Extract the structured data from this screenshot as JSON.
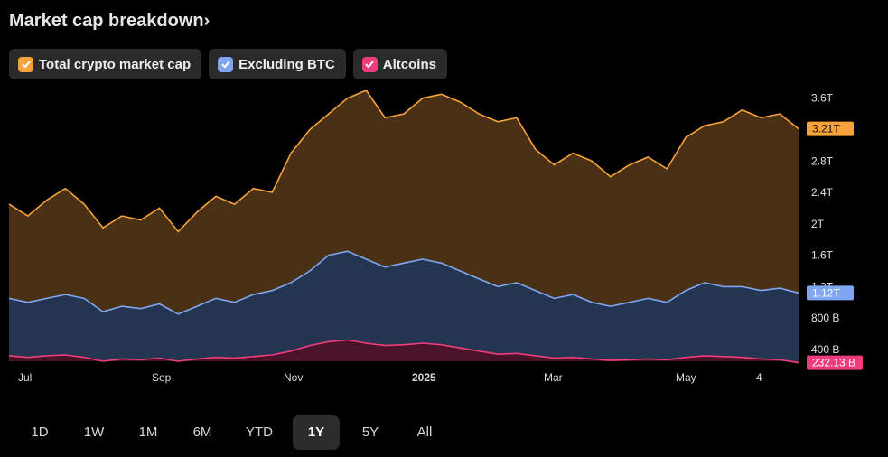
{
  "header": {
    "title": "Market cap breakdown",
    "chevron": "›"
  },
  "legend": [
    {
      "label": "Total crypto market cap",
      "color": "#f7a23b",
      "icon": "check-icon"
    },
    {
      "label": "Excluding BTC",
      "color": "#7fa6f0",
      "icon": "check-icon"
    },
    {
      "label": "Altcoins",
      "color": "#f03c7c",
      "icon": "check-icon"
    }
  ],
  "range_selector": {
    "options": [
      "1D",
      "1W",
      "1M",
      "6M",
      "YTD",
      "1Y",
      "5Y",
      "All"
    ],
    "selected": "1Y"
  },
  "chart_data": {
    "type": "area",
    "x_ticks": [
      "Jul",
      "Sep",
      "Nov",
      "2025",
      "Mar",
      "May",
      "4"
    ],
    "y_ticks": [
      "3.6T",
      "2.8T",
      "2.4T",
      "2T",
      "1.6T",
      "1.2T",
      "800 B",
      "400 B"
    ],
    "ylim_billions": [
      250,
      3700
    ],
    "series": [
      {
        "name": "Total crypto market cap",
        "color": "#f7a23b",
        "fill": "#4a3015",
        "last_label": "3.21T",
        "dates": [
          "Jun 2024",
          "Jul 2024",
          "Jul 2024",
          "Jul 2024",
          "Aug 2024",
          "Aug 2024",
          "Aug 2024",
          "Sep 2024",
          "Sep 2024",
          "Sep 2024",
          "Oct 2024",
          "Oct 2024",
          "Oct 2024",
          "Nov 2024",
          "Nov 2024",
          "Nov 2024",
          "Nov 2024",
          "Dec 2024",
          "Dec 2024",
          "Dec 2024",
          "Dec 2024",
          "Jan 2025",
          "Jan 2025",
          "Jan 2025",
          "Jan 2025",
          "Feb 2025",
          "Feb 2025",
          "Feb 2025",
          "Mar 2025",
          "Mar 2025",
          "Mar 2025",
          "Mar 2025",
          "Apr 2025",
          "Apr 2025",
          "Apr 2025",
          "Apr 2025",
          "May 2025",
          "May 2025",
          "May 2025",
          "May 2025",
          "Jun 2025",
          "Jun 2025",
          "Jun 2025"
        ],
        "values_T": [
          2.25,
          2.1,
          2.3,
          2.45,
          2.25,
          1.95,
          2.1,
          2.05,
          2.2,
          1.9,
          2.15,
          2.35,
          2.25,
          2.45,
          2.4,
          2.9,
          3.2,
          3.4,
          3.6,
          3.7,
          3.35,
          3.4,
          3.6,
          3.65,
          3.55,
          3.4,
          3.3,
          3.35,
          2.95,
          2.75,
          2.9,
          2.8,
          2.6,
          2.75,
          2.85,
          2.7,
          3.1,
          3.25,
          3.3,
          3.45,
          3.35,
          3.4,
          3.21
        ]
      },
      {
        "name": "Excluding BTC",
        "color": "#7fa6f0",
        "fill": "#243552",
        "last_label": "1.12T",
        "values_T": [
          1.05,
          1.0,
          1.05,
          1.1,
          1.05,
          0.88,
          0.95,
          0.92,
          0.98,
          0.85,
          0.95,
          1.05,
          1.0,
          1.1,
          1.15,
          1.25,
          1.4,
          1.6,
          1.65,
          1.55,
          1.45,
          1.5,
          1.55,
          1.5,
          1.4,
          1.3,
          1.2,
          1.25,
          1.15,
          1.05,
          1.1,
          1.0,
          0.95,
          1.0,
          1.05,
          1.0,
          1.15,
          1.25,
          1.2,
          1.2,
          1.15,
          1.18,
          1.12
        ]
      },
      {
        "name": "Altcoins",
        "color": "#f03c7c",
        "fill": "#4a1428",
        "last_label": "232.13 B",
        "values_T": [
          0.32,
          0.3,
          0.32,
          0.33,
          0.3,
          0.25,
          0.28,
          0.27,
          0.29,
          0.25,
          0.28,
          0.3,
          0.29,
          0.31,
          0.33,
          0.38,
          0.45,
          0.5,
          0.52,
          0.48,
          0.45,
          0.46,
          0.48,
          0.46,
          0.42,
          0.38,
          0.34,
          0.35,
          0.32,
          0.29,
          0.3,
          0.28,
          0.26,
          0.27,
          0.28,
          0.27,
          0.3,
          0.32,
          0.31,
          0.3,
          0.28,
          0.27,
          0.232
        ]
      }
    ]
  }
}
